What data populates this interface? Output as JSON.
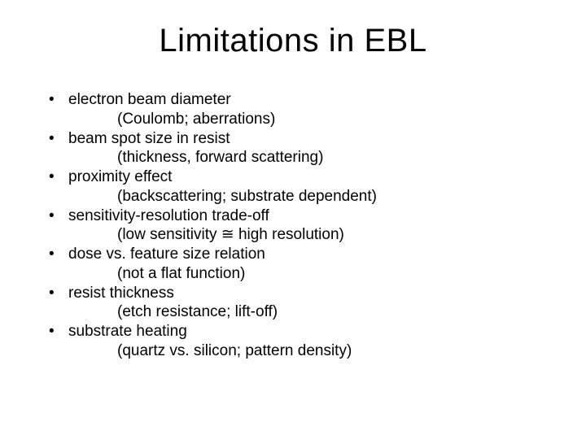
{
  "title": "Limitations in EBL",
  "items": [
    {
      "main": "electron beam diameter",
      "sub": "(Coulomb; aberrations)"
    },
    {
      "main": "beam spot size in resist",
      "sub": "(thickness, forward scattering)"
    },
    {
      "main": "proximity effect",
      "sub": "(backscattering; substrate dependent)"
    },
    {
      "main": "sensitivity-resolution trade-off",
      "sub": "(low sensitivity ≅ high resolution)"
    },
    {
      "main": "dose vs. feature size relation",
      "sub": "(not a flat function)"
    },
    {
      "main": "resist thickness",
      "sub": "(etch resistance; lift-off)"
    },
    {
      "main": "substrate heating",
      "sub": "(quartz vs. silicon; pattern density)"
    }
  ],
  "style": {
    "background_color": "#ffffff",
    "text_color": "#000000",
    "title_fontsize": 40,
    "body_fontsize": 19,
    "font_family": "Arial"
  }
}
